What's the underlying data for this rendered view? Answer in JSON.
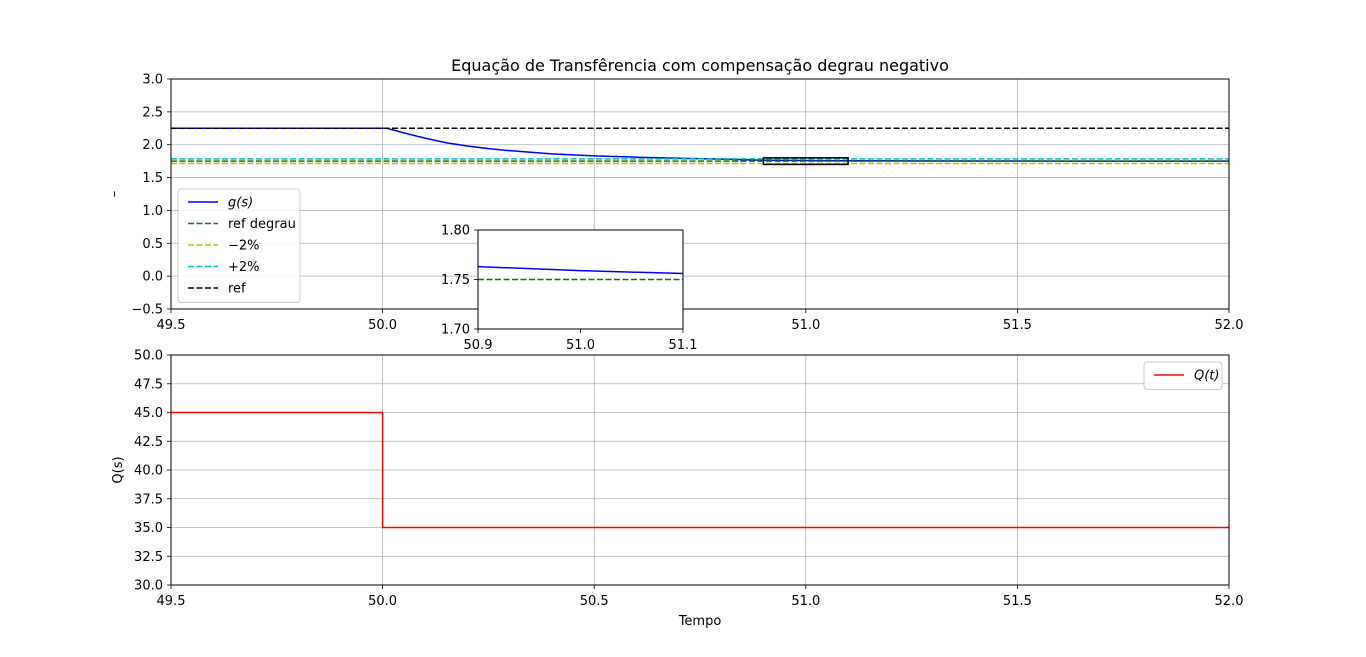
{
  "chart_data": [
    {
      "type": "line",
      "title": "Equação de Transfêrencia com compensação degrau negativo",
      "xlabel": "",
      "ylabel": "–",
      "xlim": [
        49.5,
        52.0
      ],
      "ylim": [
        -0.5,
        3.0
      ],
      "x_ticks": [
        "49.5",
        "50.0",
        "50.5",
        "51.0",
        "51.5",
        "52.0"
      ],
      "y_ticks": [
        "−0.5",
        "0.0",
        "0.5",
        "1.0",
        "1.5",
        "2.0",
        "2.5",
        "3.0"
      ],
      "grid": true,
      "legend_position": "center-left",
      "series": [
        {
          "name": "g(s)",
          "color": "#0000ff",
          "style": "solid",
          "x": [
            49.5,
            50.0,
            50.01,
            50.05,
            50.1,
            50.15,
            50.2,
            50.25,
            50.3,
            50.4,
            50.5,
            50.6,
            50.7,
            50.8,
            50.9,
            51.0,
            51.1,
            51.2,
            51.4,
            51.6,
            51.8,
            52.0
          ],
          "y": [
            2.25,
            2.25,
            2.25,
            2.18,
            2.1,
            2.03,
            1.98,
            1.94,
            1.91,
            1.86,
            1.83,
            1.81,
            1.795,
            1.78,
            1.763,
            1.759,
            1.756,
            1.754,
            1.752,
            1.751,
            1.75,
            1.75
          ]
        },
        {
          "name": "ref degrau",
          "color": "#008000",
          "style": "dashed",
          "x": [
            49.5,
            52.0
          ],
          "y": [
            1.75,
            1.75
          ]
        },
        {
          "name": "−2%",
          "color": "#bfbf00",
          "style": "dashed",
          "x": [
            49.5,
            52.0
          ],
          "y": [
            1.715,
            1.715
          ]
        },
        {
          "name": "+2%",
          "color": "#00bfbf",
          "style": "dashed",
          "x": [
            49.5,
            52.0
          ],
          "y": [
            1.785,
            1.785
          ]
        },
        {
          "name": "ref",
          "color": "#000000",
          "style": "dashed",
          "x": [
            49.5,
            52.0
          ],
          "y": [
            2.25,
            2.25
          ]
        }
      ],
      "zoom_region": {
        "xlim": [
          50.9,
          51.1
        ],
        "ylim": [
          1.7,
          1.8
        ]
      }
    },
    {
      "type": "line",
      "title": "",
      "xlabel": "",
      "ylabel": "",
      "inset": true,
      "xlim": [
        50.9,
        51.1
      ],
      "ylim": [
        1.7,
        1.8
      ],
      "x_ticks": [
        "50.9",
        "51.0",
        "51.1"
      ],
      "y_ticks": [
        "1.70",
        "1.75",
        "1.80"
      ],
      "grid": false,
      "series": [
        {
          "name": "g(s)",
          "color": "#0000ff",
          "style": "solid",
          "x": [
            50.9,
            51.0,
            51.1
          ],
          "y": [
            1.763,
            1.759,
            1.756
          ]
        },
        {
          "name": "ref degrau",
          "color": "#008000",
          "style": "dashed",
          "x": [
            50.9,
            51.1
          ],
          "y": [
            1.75,
            1.75
          ]
        }
      ]
    },
    {
      "type": "line",
      "title": "",
      "xlabel": "Tempo",
      "ylabel": "Q(s)",
      "xlim": [
        49.5,
        52.0
      ],
      "ylim": [
        30.0,
        50.0
      ],
      "x_ticks": [
        "49.5",
        "50.0",
        "50.5",
        "51.0",
        "51.5",
        "52.0"
      ],
      "y_ticks": [
        "30.0",
        "32.5",
        "35.0",
        "37.5",
        "40.0",
        "42.5",
        "45.0",
        "47.5",
        "50.0"
      ],
      "grid": true,
      "legend_position": "top-right",
      "series": [
        {
          "name": "Q(t)",
          "color": "#ff0000",
          "style": "solid",
          "x": [
            49.5,
            50.0,
            50.0,
            52.0
          ],
          "y": [
            45.0,
            45.0,
            35.0,
            35.0
          ]
        }
      ]
    }
  ]
}
